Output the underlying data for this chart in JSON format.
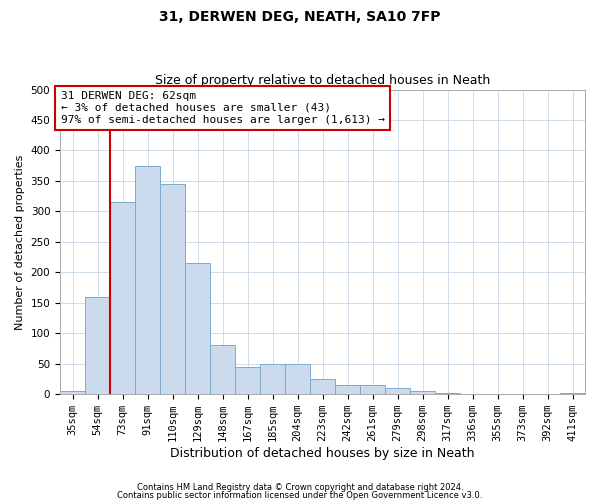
{
  "title": "31, DERWEN DEG, NEATH, SA10 7FP",
  "subtitle": "Size of property relative to detached houses in Neath",
  "xlabel": "Distribution of detached houses by size in Neath",
  "ylabel": "Number of detached properties",
  "bar_labels": [
    "35sqm",
    "54sqm",
    "73sqm",
    "91sqm",
    "110sqm",
    "129sqm",
    "148sqm",
    "167sqm",
    "185sqm",
    "204sqm",
    "223sqm",
    "242sqm",
    "261sqm",
    "279sqm",
    "298sqm",
    "317sqm",
    "336sqm",
    "355sqm",
    "373sqm",
    "392sqm",
    "411sqm"
  ],
  "bar_values": [
    5,
    160,
    315,
    375,
    345,
    215,
    80,
    45,
    50,
    50,
    25,
    15,
    15,
    10,
    5,
    2,
    0,
    0,
    0,
    0,
    2
  ],
  "bar_color": "#ccdaed",
  "bar_edge_color": "#7aaacb",
  "ylim": [
    0,
    500
  ],
  "yticks": [
    0,
    50,
    100,
    150,
    200,
    250,
    300,
    350,
    400,
    450,
    500
  ],
  "vline_x": 1.5,
  "vline_color": "#cc0000",
  "annotation_text": "31 DERWEN DEG: 62sqm\n← 3% of detached houses are smaller (43)\n97% of semi-detached houses are larger (1,613) →",
  "annotation_box_color": "#ffffff",
  "annotation_box_edge": "#cc0000",
  "footer_line1": "Contains HM Land Registry data © Crown copyright and database right 2024.",
  "footer_line2": "Contains public sector information licensed under the Open Government Licence v3.0.",
  "background_color": "#ffffff",
  "grid_color": "#c8d8e8",
  "title_fontsize": 10,
  "subtitle_fontsize": 9,
  "ylabel_fontsize": 8,
  "xlabel_fontsize": 9,
  "tick_fontsize": 7.5,
  "annotation_fontsize": 8
}
